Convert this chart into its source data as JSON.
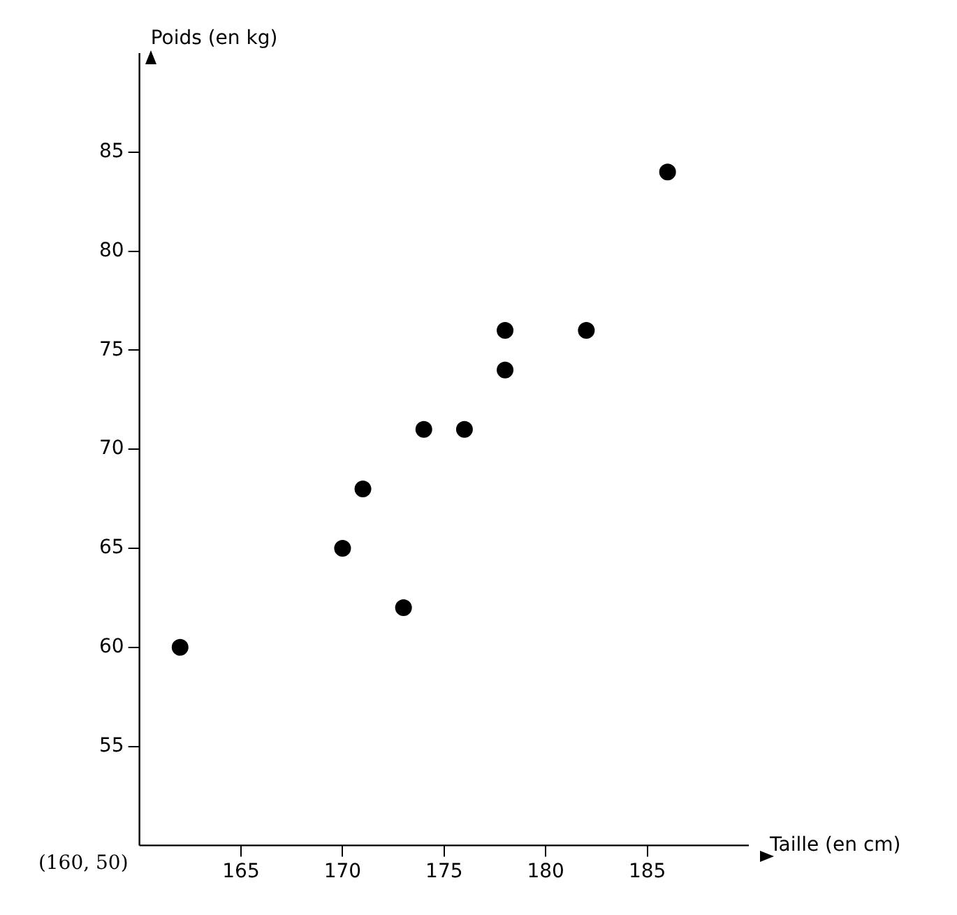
{
  "chart_data": {
    "type": "scatter",
    "xlabel": "Taille (en cm)",
    "ylabel": "Poids (en kg)",
    "x": [
      162,
      170,
      171,
      173,
      174,
      176,
      178,
      178,
      182,
      186
    ],
    "values": [
      60,
      65,
      68,
      62,
      71,
      71,
      76,
      74,
      76,
      84
    ],
    "color": "#000000",
    "marker": "circle",
    "grid": false,
    "legend": false,
    "xlim": [
      160,
      190
    ],
    "ylim": [
      50,
      90
    ],
    "xticks": [
      165,
      170,
      175,
      180,
      185
    ],
    "yticks": [
      55,
      60,
      65,
      70,
      75,
      80,
      85
    ],
    "annotations": [
      "(160, 50)"
    ]
  }
}
